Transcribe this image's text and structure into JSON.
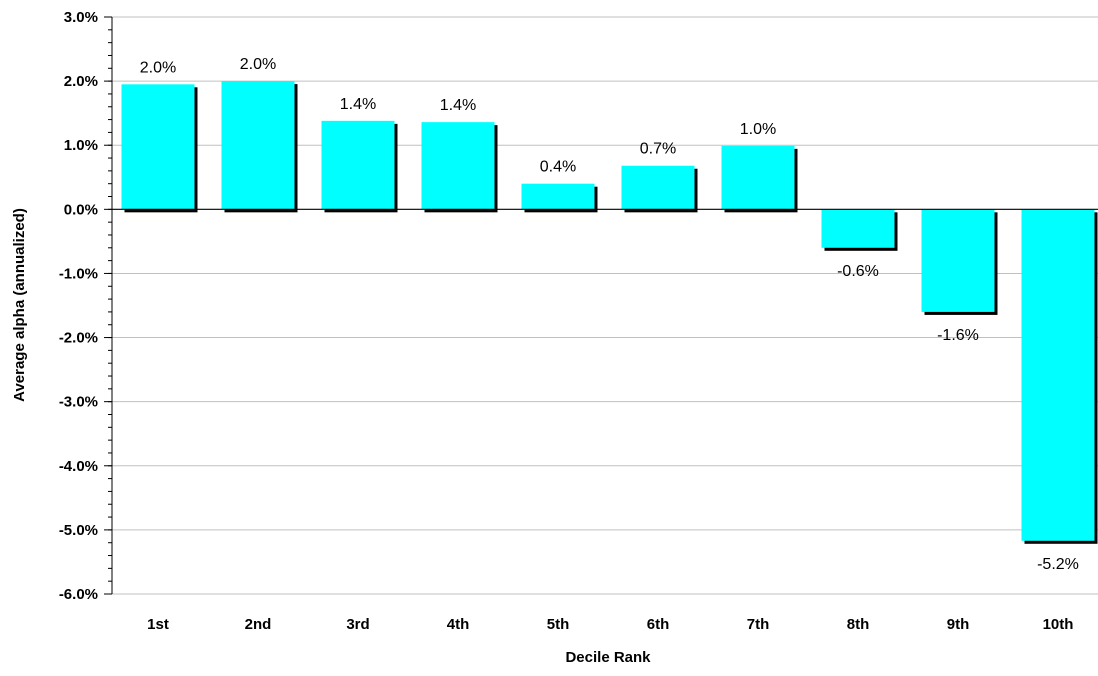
{
  "chart_data": {
    "type": "bar",
    "title": "",
    "xlabel": "Decile Rank",
    "ylabel": "Average alpha (annualized)",
    "categories": [
      "1st",
      "2nd",
      "3rd",
      "4th",
      "5th",
      "6th",
      "7th",
      "8th",
      "9th",
      "10th"
    ],
    "values": [
      1.95,
      2.0,
      1.38,
      1.36,
      0.4,
      0.68,
      0.99,
      -0.6,
      -1.6,
      -5.17
    ],
    "data_labels": [
      "2.0%",
      "2.0%",
      "1.4%",
      "1.4%",
      "0.4%",
      "0.7%",
      "1.0%",
      "-0.6%",
      "-1.6%",
      "-5.2%"
    ],
    "ylim": [
      -6.0,
      3.0
    ],
    "yticks": [
      3.0,
      2.0,
      1.0,
      0.0,
      -1.0,
      -2.0,
      -3.0,
      -4.0,
      -5.0,
      -6.0
    ],
    "ytick_labels": [
      "3.0%",
      "2.0%",
      "1.0%",
      "0.0%",
      "-1.0%",
      "-2.0%",
      "-3.0%",
      "-4.0%",
      "-5.0%",
      "-6.0%"
    ],
    "grid": true,
    "legend": "none",
    "colors": {
      "bar": "#00ffff",
      "bar_shadow": "#000000",
      "grid": "#c0c0c0",
      "axis": "#000000",
      "background": "#ffffff"
    }
  }
}
